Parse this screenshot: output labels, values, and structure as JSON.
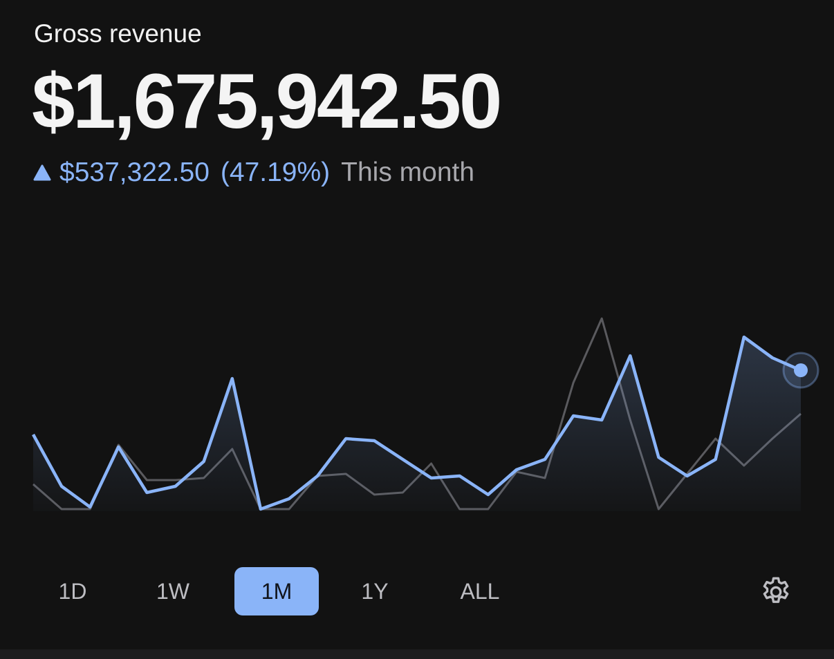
{
  "header": {
    "title": "Gross revenue",
    "amount": "$1,675,942.50"
  },
  "change": {
    "amount": "$537,322.50",
    "percent": "(47.19%)",
    "period": "This month"
  },
  "chart_data": {
    "type": "line",
    "ylim": [
      0,
      100
    ],
    "series": [
      {
        "color": "#5a5a5e",
        "values": [
          13,
          1,
          1,
          32,
          15,
          15,
          16,
          30,
          1,
          1,
          17,
          18,
          8,
          9,
          23,
          1,
          1,
          19,
          16,
          62,
          93,
          44,
          1,
          18,
          35,
          22,
          35,
          47
        ]
      },
      {
        "color": "#8ab4f8",
        "values": [
          37,
          12,
          2,
          31,
          9,
          12,
          24,
          64,
          1,
          6,
          17,
          35,
          34,
          25,
          16,
          17,
          8,
          20,
          25,
          46,
          44,
          75,
          26,
          17,
          25,
          84,
          74,
          68
        ]
      }
    ]
  },
  "ranges": [
    "1D",
    "1W",
    "1M",
    "1Y",
    "ALL"
  ],
  "selected_range": 2
}
